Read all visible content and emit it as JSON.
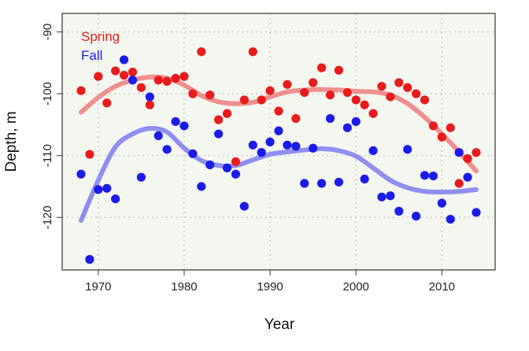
{
  "chart_data": {
    "type": "scatter",
    "title": "",
    "xlabel": "Year",
    "ylabel": "Depth, m",
    "xlim": [
      1965.8,
      2016.2
    ],
    "ylim": [
      -128.5,
      -87
    ],
    "xticks": [
      1970,
      1980,
      1990,
      2000,
      2010
    ],
    "yticks": [
      -90,
      -100,
      -110,
      -120
    ],
    "xtick_labels": [
      "1970",
      "1980",
      "1990",
      "2000",
      "2010"
    ],
    "ytick_labels": [
      "-90",
      "-100",
      "-110",
      "-120"
    ],
    "grid": true,
    "legend_position": "top-left",
    "colors": {
      "background": "#f4f6f0",
      "grid": "#c8c8c8",
      "spring_points": "#e81c1c",
      "spring_smooth": "#f08f8f",
      "fall_points": "#1c1ce8",
      "fall_smooth": "#8f8ff0"
    },
    "series": [
      {
        "name": "Spring",
        "x": [
          1968,
          1969,
          1970,
          1971,
          1972,
          1973,
          1974,
          1975,
          1976,
          1977,
          1978,
          1979,
          1980,
          1981,
          1982,
          1983,
          1984,
          1985,
          1986,
          1987,
          1988,
          1989,
          1990,
          1991,
          1992,
          1993,
          1994,
          1995,
          1996,
          1997,
          1998,
          1999,
          2000,
          2001,
          2002,
          2003,
          2004,
          2005,
          2006,
          2007,
          2008,
          2009,
          2010,
          2011,
          2012,
          2013,
          2014
        ],
        "y": [
          -99.5,
          -109.8,
          -97.2,
          -101.5,
          -96.3,
          -97.0,
          -96.5,
          -99.0,
          -101.8,
          -97.8,
          -98.0,
          -97.5,
          -97.2,
          -100.0,
          -93.2,
          -100.2,
          -104.2,
          -103.2,
          -111.0,
          -101.0,
          -93.2,
          -101.0,
          -99.5,
          -102.8,
          -98.5,
          -104.0,
          -99.8,
          -98.2,
          -95.8,
          -100.2,
          -96.2,
          -99.8,
          -101.0,
          -101.8,
          -103.2,
          -98.8,
          -100.5,
          -98.2,
          -99.0,
          -100.0,
          -101.0,
          -105.2,
          -107.0,
          -105.5,
          -114.5,
          -110.5,
          -109.5
        ],
        "smooth_x": [
          1968,
          1970,
          1972,
          1974,
          1976,
          1978,
          1980,
          1982,
          1984,
          1986,
          1988,
          1990,
          1992,
          1994,
          1996,
          1998,
          2000,
          2002,
          2004,
          2006,
          2008,
          2010,
          2012,
          2014
        ],
        "smooth_y": [
          -103,
          -100.6,
          -98.8,
          -97.8,
          -97.3,
          -97.5,
          -98.6,
          -100.3,
          -101.3,
          -101.6,
          -101.4,
          -100.5,
          -99.7,
          -99.4,
          -99.3,
          -99.4,
          -99.6,
          -99.7,
          -100.2,
          -101.6,
          -103.8,
          -106.5,
          -109.4,
          -112.5
        ]
      },
      {
        "name": "Fall",
        "x": [
          1968,
          1969,
          1970,
          1971,
          1972,
          1973,
          1974,
          1975,
          1976,
          1977,
          1978,
          1979,
          1980,
          1981,
          1982,
          1983,
          1984,
          1985,
          1986,
          1987,
          1988,
          1989,
          1990,
          1991,
          1992,
          1993,
          1994,
          1995,
          1996,
          1997,
          1998,
          1999,
          2000,
          2001,
          2002,
          2003,
          2004,
          2005,
          2006,
          2007,
          2008,
          2009,
          2010,
          2011,
          2012,
          2013,
          2014
        ],
        "y": [
          -113.0,
          -126.8,
          -115.5,
          -115.3,
          -117.0,
          -94.5,
          -97.8,
          -113.5,
          -100.5,
          -106.8,
          -109.0,
          -104.5,
          -105.2,
          -109.7,
          -115.0,
          -111.5,
          -106.5,
          -112.0,
          -113.0,
          -118.2,
          -108.3,
          -109.5,
          -107.8,
          -106.0,
          -108.3,
          -108.5,
          -114.5,
          -108.8,
          -114.5,
          -104.0,
          -114.3,
          -105.5,
          -104.5,
          -113.8,
          -109.2,
          -116.7,
          -116.5,
          -119.0,
          -109.0,
          -119.8,
          -113.2,
          -113.3,
          -117.7,
          -120.3,
          -109.5,
          -113.5,
          -119.2
        ],
        "smooth_x": [
          1968,
          1970,
          1972,
          1974,
          1976,
          1978,
          1980,
          1982,
          1984,
          1986,
          1988,
          1990,
          1992,
          1994,
          1996,
          1998,
          2000,
          2002,
          2004,
          2006,
          2008,
          2010,
          2012,
          2014
        ],
        "smooth_y": [
          -120.5,
          -114,
          -108.6,
          -106.5,
          -105.6,
          -106.2,
          -108.8,
          -110.8,
          -111.6,
          -111.6,
          -110.7,
          -109.8,
          -109.4,
          -109.1,
          -108.9,
          -109.2,
          -110.1,
          -112,
          -114,
          -115.2,
          -115.8,
          -115.9,
          -115.8,
          -115.5
        ]
      }
    ]
  }
}
